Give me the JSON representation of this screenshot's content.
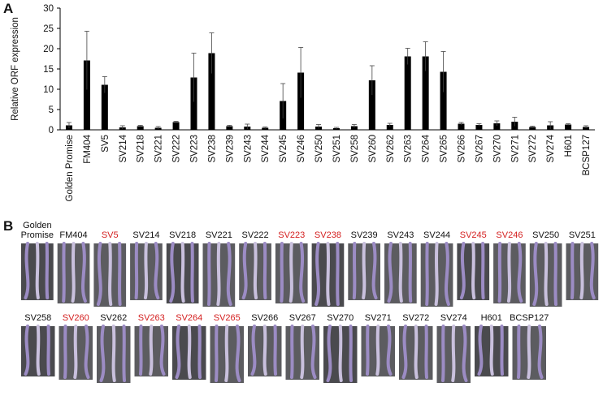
{
  "chart_data": {
    "type": "bar",
    "panel_label": "A",
    "y_label": "Relative ORF expression",
    "categories": [
      "Golden Promise",
      "FM404",
      "SV5",
      "SV214",
      "SV218",
      "SV221",
      "SV222",
      "SV223",
      "SV238",
      "SV239",
      "SV243",
      "SV244",
      "SV245",
      "SV246",
      "SV250",
      "SV251",
      "SV258",
      "SV260",
      "SV262",
      "SV263",
      "SV264",
      "SV265",
      "SV266",
      "SV267",
      "SV270",
      "SV271",
      "SV272",
      "SV274",
      "H601",
      "BCSP127"
    ],
    "values": [
      1.1,
      17.1,
      11.1,
      0.6,
      0.9,
      0.5,
      1.9,
      12.9,
      18.9,
      0.9,
      0.8,
      0.5,
      7.1,
      14.1,
      0.8,
      0.4,
      0.9,
      12.2,
      1.2,
      18.1,
      18.1,
      14.3,
      1.5,
      1.2,
      1.6,
      2.0,
      0.7,
      1.1,
      1.3,
      0.7
    ],
    "errors": [
      0.7,
      7.2,
      2.0,
      0.4,
      0.2,
      0.3,
      0.2,
      6.0,
      5.0,
      0.2,
      0.6,
      0.2,
      4.3,
      6.2,
      0.5,
      0.2,
      0.4,
      3.6,
      0.4,
      2.0,
      3.6,
      5.0,
      0.3,
      0.3,
      0.6,
      1.1,
      0.2,
      0.9,
      0.2,
      0.3
    ],
    "color": "#000000",
    "ylim": [
      0,
      30
    ],
    "yticks": [
      0,
      5,
      10,
      15,
      20,
      25,
      30
    ]
  },
  "panel_b": {
    "panel_label": "B",
    "highlight_color": "#d42020",
    "rows": [
      [
        {
          "label": "Golden Promise",
          "highlight": false
        },
        {
          "label": "FM404",
          "highlight": false
        },
        {
          "label": "SV5",
          "highlight": true
        },
        {
          "label": "SV214",
          "highlight": false
        },
        {
          "label": "SV218",
          "highlight": false
        },
        {
          "label": "SV221",
          "highlight": false
        },
        {
          "label": "SV222",
          "highlight": false
        },
        {
          "label": "SV223",
          "highlight": true
        },
        {
          "label": "SV238",
          "highlight": true
        },
        {
          "label": "SV239",
          "highlight": false
        },
        {
          "label": "SV243",
          "highlight": false
        },
        {
          "label": "SV244",
          "highlight": false
        },
        {
          "label": "SV245",
          "highlight": true
        },
        {
          "label": "SV246",
          "highlight": true
        },
        {
          "label": "SV250",
          "highlight": false
        },
        {
          "label": "SV251",
          "highlight": false
        }
      ],
      [
        {
          "label": "SV258",
          "highlight": false
        },
        {
          "label": "SV260",
          "highlight": true
        },
        {
          "label": "SV262",
          "highlight": false
        },
        {
          "label": "SV263",
          "highlight": true
        },
        {
          "label": "SV264",
          "highlight": true
        },
        {
          "label": "SV265",
          "highlight": true
        },
        {
          "label": "SV266",
          "highlight": false
        },
        {
          "label": "SV267",
          "highlight": false
        },
        {
          "label": "SV270",
          "highlight": false
        },
        {
          "label": "SV271",
          "highlight": false
        },
        {
          "label": "SV272",
          "highlight": false
        },
        {
          "label": "SV274",
          "highlight": false
        },
        {
          "label": "H601",
          "highlight": false
        },
        {
          "label": "BCSP127",
          "highlight": false
        }
      ]
    ]
  }
}
